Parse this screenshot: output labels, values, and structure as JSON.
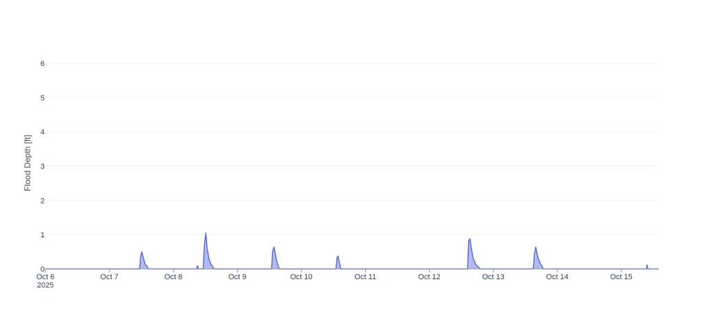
{
  "chart_data": {
    "type": "area",
    "title": "",
    "xlabel": "",
    "ylabel": "Flood Depth [ft]",
    "ylim": [
      0,
      6.2
    ],
    "xlim": [
      "2025-10-06",
      "2025-10-15 14:00"
    ],
    "grid": true,
    "legend": "none",
    "colors": {
      "line": "#5a6fcf",
      "fill": "#aab4ec",
      "grid": "#eef1f5",
      "axis": "#8a94b0",
      "text": "#2a3f5f"
    },
    "y_ticks": [
      "0",
      "1",
      "2",
      "3",
      "4",
      "5",
      "6"
    ],
    "x_ticks": [
      {
        "date": "2025-10-06",
        "label": "Oct 6",
        "sublabel": "2025"
      },
      {
        "date": "2025-10-07",
        "label": "Oct 7"
      },
      {
        "date": "2025-10-08",
        "label": "Oct 8"
      },
      {
        "date": "2025-10-09",
        "label": "Oct 9"
      },
      {
        "date": "2025-10-10",
        "label": "Oct 10"
      },
      {
        "date": "2025-10-11",
        "label": "Oct 11"
      },
      {
        "date": "2025-10-12",
        "label": "Oct 12"
      },
      {
        "date": "2025-10-13",
        "label": "Oct 13"
      },
      {
        "date": "2025-10-14",
        "label": "Oct 14"
      },
      {
        "date": "2025-10-15",
        "label": "Oct 15"
      }
    ],
    "series": [
      {
        "x": [
          "2025-10-06 00:00",
          "2025-10-07 11:20",
          "2025-10-07 11:45",
          "2025-10-07 12:10",
          "2025-10-07 12:50",
          "2025-10-07 13:30",
          "2025-10-07 14:05",
          "2025-10-07 14:30",
          "2025-10-08 08:40",
          "2025-10-08 08:55",
          "2025-10-08 09:10",
          "2025-10-08 09:20",
          "2025-10-08 11:10",
          "2025-10-08 11:40",
          "2025-10-08 12:10",
          "2025-10-08 12:40",
          "2025-10-08 13:20",
          "2025-10-08 14:00",
          "2025-10-08 14:40",
          "2025-10-08 15:10",
          "2025-10-09 12:50",
          "2025-10-09 13:15",
          "2025-10-09 13:45",
          "2025-10-09 14:30",
          "2025-10-09 15:15",
          "2025-10-09 15:45",
          "2025-10-10 13:00",
          "2025-10-10 13:20",
          "2025-10-10 13:45",
          "2025-10-10 14:30",
          "2025-10-10 14:50",
          "2025-10-12 14:20",
          "2025-10-12 14:45",
          "2025-10-12 15:15",
          "2025-10-12 15:45",
          "2025-10-12 16:30",
          "2025-10-12 17:30",
          "2025-10-12 18:30",
          "2025-10-12 19:00",
          "2025-10-13 15:00",
          "2025-10-13 15:25",
          "2025-10-13 15:55",
          "2025-10-13 16:40",
          "2025-10-13 17:40",
          "2025-10-13 18:20",
          "2025-10-13 18:40",
          "2025-10-15 09:25",
          "2025-10-15 09:40",
          "2025-10-15 09:55",
          "2025-10-15 14:00"
        ],
        "y": [
          0,
          0,
          0.38,
          0.5,
          0.3,
          0.12,
          0.08,
          0,
          0,
          0.08,
          0.08,
          0,
          0,
          0.7,
          1.05,
          0.6,
          0.3,
          0.15,
          0.08,
          0,
          0,
          0.52,
          0.64,
          0.32,
          0.1,
          0,
          0,
          0.32,
          0.38,
          0.1,
          0,
          0,
          0.82,
          0.88,
          0.6,
          0.3,
          0.12,
          0.05,
          0,
          0,
          0.45,
          0.64,
          0.35,
          0.15,
          0.08,
          0,
          0,
          0.12,
          0,
          0
        ]
      }
    ]
  }
}
